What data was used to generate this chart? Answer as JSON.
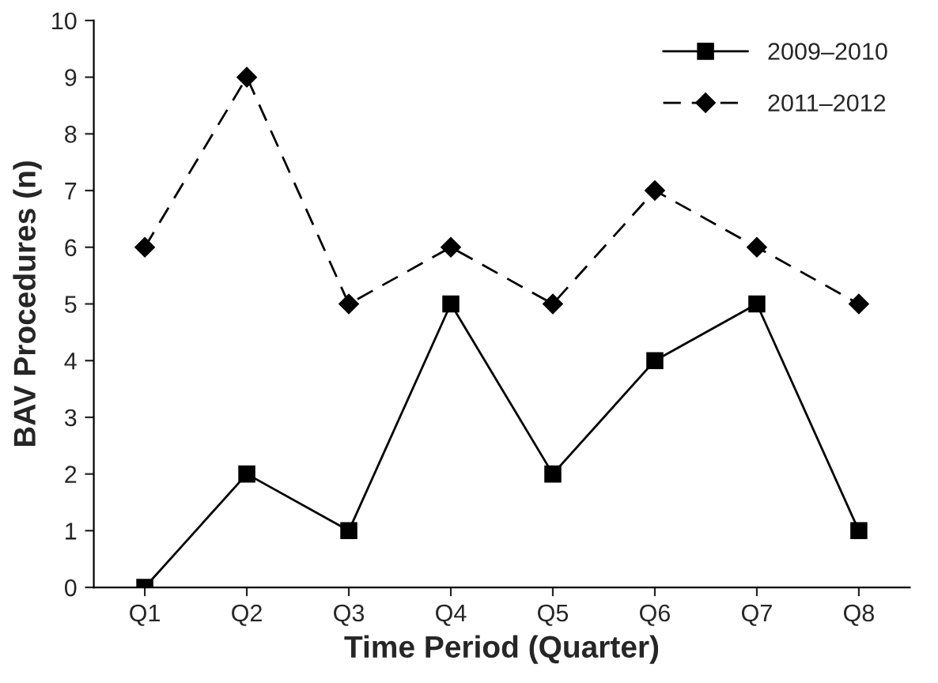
{
  "chart_data": {
    "type": "line",
    "xlabel": "Time Period (Quarter)",
    "ylabel": "BAV Procedures (n)",
    "categories": [
      "Q1",
      "Q2",
      "Q3",
      "Q4",
      "Q5",
      "Q6",
      "Q7",
      "Q8"
    ],
    "series": [
      {
        "name": "2009–2010",
        "color": "#000000",
        "marker": "square",
        "line_style": "solid",
        "values": [
          0,
          2,
          1,
          5,
          2,
          4,
          5,
          1
        ]
      },
      {
        "name": "2011–2012",
        "color": "#000000",
        "marker": "diamond",
        "line_style": "dashed",
        "values": [
          6,
          9,
          5,
          6,
          5,
          7,
          6,
          5
        ]
      }
    ],
    "ylim": [
      0,
      10
    ],
    "yticks": [
      0,
      1,
      2,
      3,
      4,
      5,
      6,
      7,
      8,
      9,
      10
    ],
    "grid": false,
    "legend": "top right"
  }
}
